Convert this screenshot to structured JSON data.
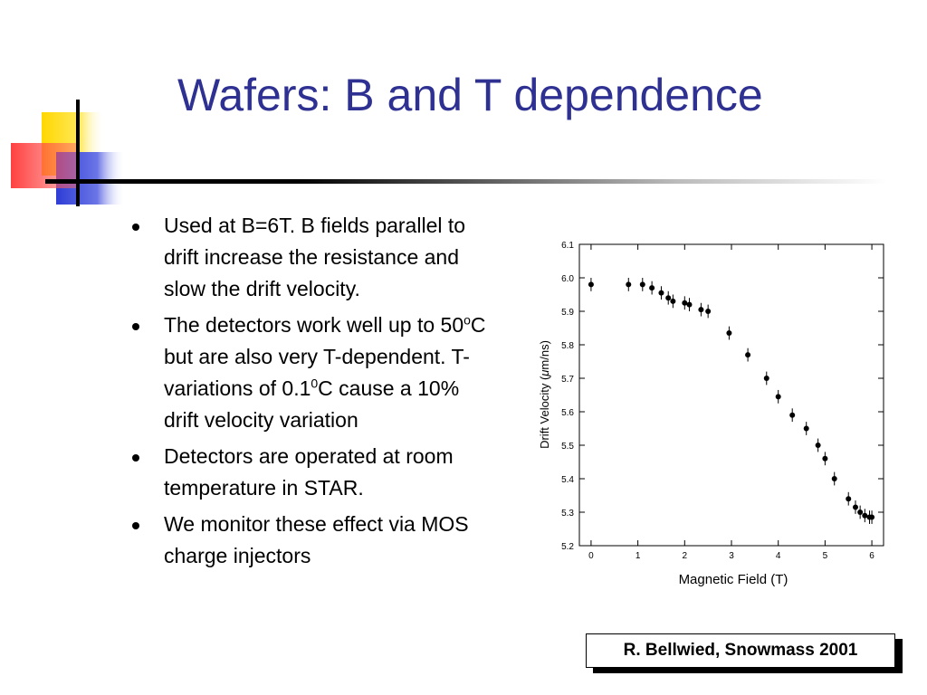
{
  "slide": {
    "title": "Wafers: B and T dependence",
    "accent_colors": {
      "title": "#2e3192",
      "yellow": "#ffd700",
      "blue": "#2e3dd6",
      "red": "#ff2a2a"
    }
  },
  "bullets": [
    {
      "text": "Used at B=6T. B fields parallel to drift increase the resistance and slow the drift velocity."
    },
    {
      "pre": "The detectors work well up to 50",
      "sup1": "o",
      "mid": "C but are also very T-dependent. T-variations of 0.1",
      "sup2": "0",
      "post": "C cause a 10% drift velocity variation"
    },
    {
      "text": "Detectors are operated at room temperature in STAR."
    },
    {
      "text": "We monitor these effect via MOS charge injectors"
    }
  ],
  "credit": "R. Bellwied, Snowmass 2001",
  "chart_data": {
    "type": "scatter",
    "xlabel": "Magnetic Field (T)",
    "ylabel_pre": "Drift Velocity (",
    "ylabel_mu": "μ",
    "ylabel_post": "m/ns)",
    "xlim": [
      -0.25,
      6.25
    ],
    "ylim": [
      5.2,
      6.1
    ],
    "xticks": [
      "0",
      "1",
      "2",
      "3",
      "4",
      "5",
      "6"
    ],
    "yticks": [
      "5.2",
      "5.3",
      "5.4",
      "5.5",
      "5.6",
      "5.7",
      "5.8",
      "5.9",
      "6.0",
      "6.1"
    ],
    "points": [
      {
        "x": 0.0,
        "y": 5.98
      },
      {
        "x": 0.8,
        "y": 5.98
      },
      {
        "x": 1.1,
        "y": 5.98
      },
      {
        "x": 1.3,
        "y": 5.97
      },
      {
        "x": 1.5,
        "y": 5.955
      },
      {
        "x": 1.65,
        "y": 5.94
      },
      {
        "x": 1.75,
        "y": 5.93
      },
      {
        "x": 2.0,
        "y": 5.925
      },
      {
        "x": 2.1,
        "y": 5.92
      },
      {
        "x": 2.35,
        "y": 5.905
      },
      {
        "x": 2.5,
        "y": 5.9
      },
      {
        "x": 2.95,
        "y": 5.835
      },
      {
        "x": 3.35,
        "y": 5.77
      },
      {
        "x": 3.75,
        "y": 5.7
      },
      {
        "x": 4.0,
        "y": 5.645
      },
      {
        "x": 4.3,
        "y": 5.59
      },
      {
        "x": 4.6,
        "y": 5.55
      },
      {
        "x": 4.85,
        "y": 5.5
      },
      {
        "x": 5.0,
        "y": 5.46
      },
      {
        "x": 5.2,
        "y": 5.4
      },
      {
        "x": 5.5,
        "y": 5.34
      },
      {
        "x": 5.65,
        "y": 5.315
      },
      {
        "x": 5.75,
        "y": 5.3
      },
      {
        "x": 5.85,
        "y": 5.29
      },
      {
        "x": 5.95,
        "y": 5.285
      },
      {
        "x": 6.0,
        "y": 5.285
      }
    ],
    "error": 0.02
  }
}
